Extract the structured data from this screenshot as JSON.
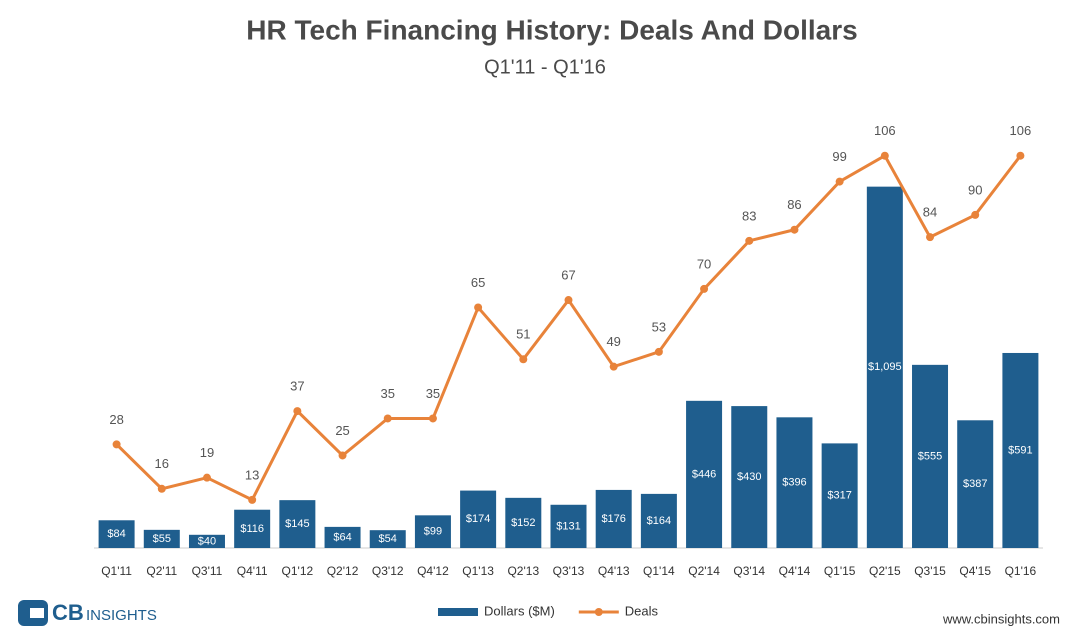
{
  "chart_data": {
    "type": "bar",
    "title": "HR Tech Financing History: Deals And Dollars",
    "subtitle": "Q1'11 - Q1'16",
    "categories": [
      "Q1'11",
      "Q2'11",
      "Q3'11",
      "Q4'11",
      "Q1'12",
      "Q2'12",
      "Q3'12",
      "Q4'12",
      "Q1'13",
      "Q2'13",
      "Q3'13",
      "Q4'13",
      "Q1'14",
      "Q2'14",
      "Q3'14",
      "Q4'14",
      "Q1'15",
      "Q2'15",
      "Q3'15",
      "Q4'15",
      "Q1'16"
    ],
    "series": [
      {
        "name": "Dollars ($M)",
        "type": "bar",
        "color": "#1f5e8e",
        "values": [
          84,
          55,
          40,
          116,
          145,
          64,
          54,
          99,
          174,
          152,
          131,
          176,
          164,
          446,
          430,
          396,
          317,
          1095,
          555,
          387,
          591
        ],
        "value_labels": [
          "$84",
          "$55",
          "$40",
          "$116",
          "$145",
          "$64",
          "$54",
          "$99",
          "$174",
          "$152",
          "$131",
          "$176",
          "$164",
          "$446",
          "$430",
          "$396",
          "$317",
          "$1,095",
          "$555",
          "$387",
          "$591"
        ]
      },
      {
        "name": "Deals",
        "type": "line",
        "axis": "y2",
        "color": "#e8833a",
        "values": [
          28,
          16,
          19,
          13,
          37,
          25,
          35,
          35,
          65,
          51,
          67,
          49,
          53,
          70,
          83,
          86,
          99,
          106,
          84,
          90,
          106
        ]
      }
    ],
    "ylim": [
      0,
      1200
    ],
    "y2lim": [
      0,
      107
    ],
    "legend": "bottom",
    "brand": {
      "prefix": "CB",
      "suffix": "INSIGHTS"
    },
    "source": "www.cbinsights.com"
  }
}
